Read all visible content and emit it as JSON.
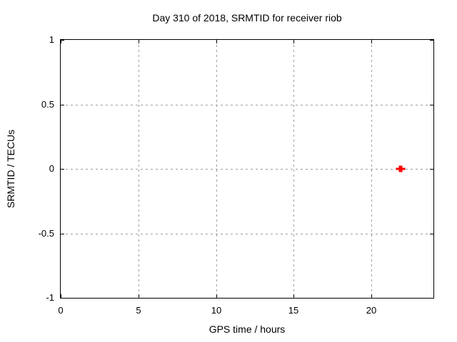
{
  "chart_data": {
    "type": "scatter",
    "title": "Day 310 of 2018, SRMTID for receiver riob",
    "xlabel": "GPS time / hours",
    "ylabel": "SRMTID / TECUs",
    "xlim": [
      0,
      24
    ],
    "ylim": [
      -1,
      1
    ],
    "xticks": [
      0,
      5,
      10,
      15,
      20
    ],
    "yticks": [
      -1,
      -0.5,
      0,
      0.5,
      1
    ],
    "grid": true,
    "legend": "none",
    "series": [
      {
        "name": "SRMTID",
        "marker": "plus",
        "color": "#ff0000",
        "points": [
          {
            "x": 21.9,
            "y": 0.0
          }
        ]
      }
    ]
  },
  "colors": {
    "background": "#ffffff",
    "frame": "#000000",
    "grid": "#9e9e9e",
    "tick": "#000000",
    "text": "#000000",
    "marker": "#ff0000"
  }
}
